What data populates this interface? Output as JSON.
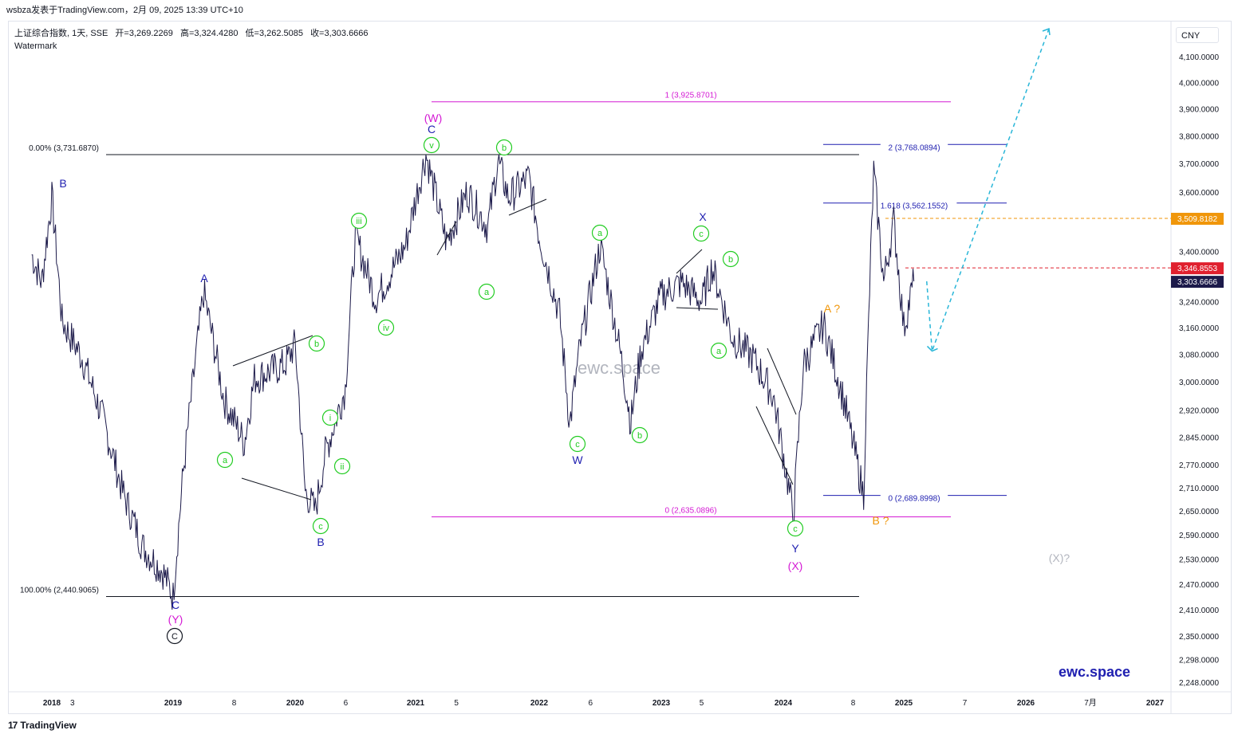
{
  "header": {
    "publisher": "wsbza发表于TradingView.com，2月 09, 2025 13:39 UTC+10"
  },
  "legend": {
    "symbol": "上证综合指数, 1天, SSE",
    "open": "开=3,269.2269",
    "high": "高=3,324.4280",
    "low": "低=3,262.5085",
    "close": "收=3,303.6666",
    "watermark": "Watermark"
  },
  "currency": "CNY",
  "watermark_center": "ewc.space",
  "brand_label": "ewc.space",
  "footer": {
    "logo": "17",
    "name": "TradingView"
  },
  "colors": {
    "price": "#1c1a4a",
    "magenta": "#d41ad4",
    "blue": "#1f1fb0",
    "green": "#22cc22",
    "orange": "#f0960a",
    "cyan": "#29b6d8",
    "red": "#e0202e",
    "black": "#131722",
    "gray": "#b2b5be"
  },
  "chart_data": {
    "type": "line",
    "ylim": [
      2200,
      4170
    ],
    "y_scale": "log",
    "x_ticks": [
      "2018",
      "3",
      "2019",
      "8",
      "2020",
      "6",
      "2021",
      "5",
      "2022",
      "6",
      "2023",
      "5",
      "2024",
      "8",
      "2025",
      "7",
      "2026",
      "7月",
      "2027"
    ],
    "y_ticks": [
      "4,100.0000",
      "4,000.0000",
      "3,900.0000",
      "3,800.0000",
      "3,700.0000",
      "3,600.0000",
      "3,400.0000",
      "3,240.0000",
      "3,160.0000",
      "3,080.0000",
      "3,000.0000",
      "2,920.0000",
      "2,845.0000",
      "2,770.0000",
      "2,710.0000",
      "2,650.0000",
      "2,590.0000",
      "2,530.0000",
      "2,470.0000",
      "2,410.0000",
      "2,350.0000",
      "2,298.0000",
      "2,248.0000"
    ],
    "price_badges": [
      {
        "label": "3,509.8182",
        "value": 3509.8182,
        "color": "#f0960a"
      },
      {
        "label": "3,346.8553",
        "value": 3346.8553,
        "color": "#e0202e"
      },
      {
        "label": "3,303.6666",
        "value": 3303.6666,
        "color": "#1c1a4a"
      }
    ],
    "series": [
      {
        "x": [
          "2017-11",
          "2017-12",
          "2018-01",
          "2018-02",
          "2018-04",
          "2018-06",
          "2018-08",
          "2018-10",
          "2018-12",
          "2019-01",
          "2019-02",
          "2019-04",
          "2019-06",
          "2019-08",
          "2019-09",
          "2019-12",
          "2020-01",
          "2020-02",
          "2020-03",
          "2020-04",
          "2020-06",
          "2020-07",
          "2020-09",
          "2020-10",
          "2020-12",
          "2021-02",
          "2021-04",
          "2021-06",
          "2021-08",
          "2021-09",
          "2021-10",
          "2021-12",
          "2022-01",
          "2022-03",
          "2022-04",
          "2022-05",
          "2022-07",
          "2022-09",
          "2022-10",
          "2022-11",
          "2023-01",
          "2023-03",
          "2023-05",
          "2023-06",
          "2023-08",
          "2023-10",
          "2023-12",
          "2024-02",
          "2024-03",
          "2024-05",
          "2024-07",
          "2024-09",
          "2024-10",
          "2024-11",
          "2024-12",
          "2025-01",
          "2025-02"
        ],
        "y": [
          3390,
          3300,
          3580,
          3180,
          3070,
          2900,
          2700,
          2560,
          2500,
          2441,
          2750,
          3270,
          2950,
          2830,
          3010,
          3050,
          3110,
          2700,
          2650,
          2800,
          2980,
          3450,
          3250,
          3300,
          3420,
          3732,
          3430,
          3600,
          3480,
          3710,
          3580,
          3650,
          3450,
          3200,
          2880,
          3100,
          3420,
          3080,
          2885,
          3090,
          3260,
          3300,
          3240,
          3350,
          3130,
          3070,
          2960,
          2635,
          3050,
          3170,
          2950,
          2690,
          3670,
          3300,
          3500,
          3160,
          3304
        ]
      }
    ],
    "levels": [
      {
        "label": "1 (3,925.8701)",
        "value": 3925.8701,
        "color": "#d41ad4"
      },
      {
        "label": "0 (2,635.0896)",
        "value": 2635.0896,
        "color": "#d41ad4"
      },
      {
        "label": "0.00% (3,731.6870)",
        "value": 3731.687,
        "color": "#131722"
      },
      {
        "label": "100.00% (2,440.9065)",
        "value": 2440.9065,
        "color": "#131722"
      },
      {
        "label": "2 (3,768.0894)",
        "value": 3768.0894,
        "color": "#1f1fb0"
      },
      {
        "label": "1.618 (3,562.1552)",
        "value": 3562.1552,
        "color": "#1f1fb0"
      },
      {
        "label": "0 (2,689.8998)",
        "value": 2689.8998,
        "color": "#1f1fb0"
      }
    ],
    "projection": {
      "points": [
        [
          "2025-02",
          3304
        ],
        [
          "2025-03",
          3090
        ],
        [
          "2026-06",
          4170
        ]
      ]
    },
    "wave_labels": [
      {
        "text": "B",
        "color": "#1f1fb0",
        "style": "plain"
      },
      {
        "text": "A",
        "color": "#1f1fb0",
        "style": "plain"
      },
      {
        "text": "a",
        "color": "#22cc22",
        "style": "circle"
      },
      {
        "text": "b",
        "color": "#22cc22",
        "style": "circle"
      },
      {
        "text": "c",
        "color": "#22cc22",
        "style": "circle"
      },
      {
        "text": "B",
        "color": "#1f1fb0",
        "style": "plain"
      },
      {
        "text": "C",
        "color": "#1f1fb0",
        "style": "plain"
      },
      {
        "text": "(Y)",
        "color": "#d41ad4",
        "style": "plain"
      },
      {
        "text": "C",
        "color": "#131722",
        "style": "circle-black"
      },
      {
        "text": "i",
        "color": "#22cc22",
        "style": "circle"
      },
      {
        "text": "ii",
        "color": "#22cc22",
        "style": "circle"
      },
      {
        "text": "iii",
        "color": "#22cc22",
        "style": "circle"
      },
      {
        "text": "iv",
        "color": "#22cc22",
        "style": "circle"
      },
      {
        "text": "v",
        "color": "#22cc22",
        "style": "circle"
      },
      {
        "text": "C",
        "color": "#1f1fb0",
        "style": "plain"
      },
      {
        "text": "(W)",
        "color": "#d41ad4",
        "style": "plain"
      },
      {
        "text": "a",
        "color": "#22cc22",
        "style": "circle"
      },
      {
        "text": "b",
        "color": "#22cc22",
        "style": "circle"
      },
      {
        "text": "a",
        "color": "#22cc22",
        "style": "circle"
      },
      {
        "text": "c",
        "color": "#22cc22",
        "style": "circle"
      },
      {
        "text": "W",
        "color": "#1f1fb0",
        "style": "plain"
      },
      {
        "text": "b",
        "color": "#22cc22",
        "style": "circle"
      },
      {
        "text": "c",
        "color": "#22cc22",
        "style": "circle"
      },
      {
        "text": "X",
        "color": "#1f1fb0",
        "style": "plain"
      },
      {
        "text": "b",
        "color": "#22cc22",
        "style": "circle"
      },
      {
        "text": "a",
        "color": "#22cc22",
        "style": "circle"
      },
      {
        "text": "c",
        "color": "#22cc22",
        "style": "circle"
      },
      {
        "text": "Y",
        "color": "#1f1fb0",
        "style": "plain"
      },
      {
        "text": "(X)",
        "color": "#d41ad4",
        "style": "plain"
      },
      {
        "text": "A ?",
        "color": "#f0960a",
        "style": "plain"
      },
      {
        "text": "B ?",
        "color": "#f0960a",
        "style": "plain"
      },
      {
        "text": "(X)?",
        "color": "#b2b5be",
        "style": "plain"
      }
    ]
  }
}
